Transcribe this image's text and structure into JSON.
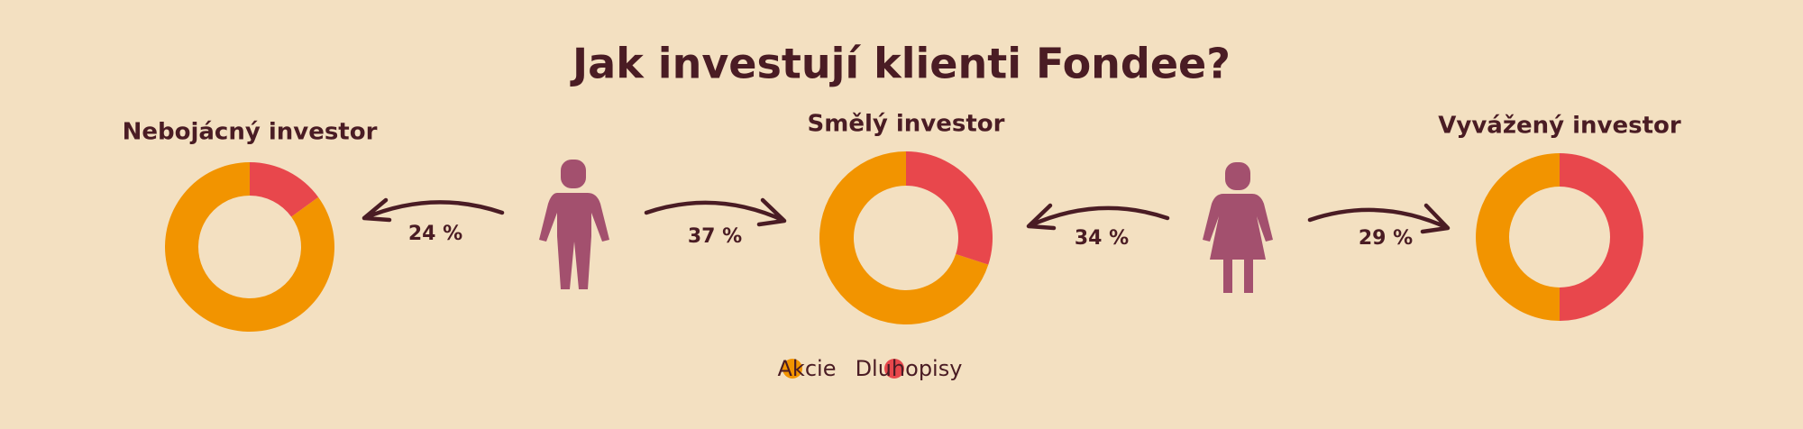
{
  "title": "Jak investují klienti Fondee?",
  "chart_data": [
    {
      "type": "pie",
      "title": "Nebojácný investor",
      "categories": [
        "Akcie",
        "Dluhopisy"
      ],
      "values": [
        85,
        15
      ],
      "colors": [
        "#f29400",
        "#e8474c"
      ]
    },
    {
      "type": "pie",
      "title": "Smělý investor",
      "categories": [
        "Akcie",
        "Dluhopisy"
      ],
      "values": [
        70,
        30
      ],
      "colors": [
        "#f29400",
        "#e8474c"
      ]
    },
    {
      "type": "pie",
      "title": "Vyvážený investor",
      "categories": [
        "Akcie",
        "Dluhopisy"
      ],
      "values": [
        50,
        50
      ],
      "colors": [
        "#f29400",
        "#e8474c"
      ]
    }
  ],
  "flows": [
    {
      "value": 24,
      "label": "24 %"
    },
    {
      "value": 37,
      "label": "37 %"
    },
    {
      "value": 34,
      "label": "34 %"
    },
    {
      "value": 29,
      "label": "29 %"
    }
  ]
}
